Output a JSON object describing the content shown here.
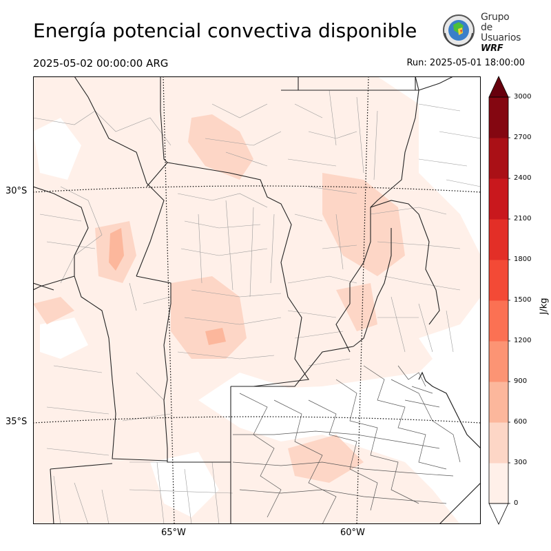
{
  "header": {
    "title": "Energía potencial convectiva disponible",
    "valid_time": "2025-05-02 00:00:00 ARG",
    "run_time": "Run: 2025-05-01 18:00:00"
  },
  "logo": {
    "line1": "Grupo de",
    "line2": "Usuarios",
    "line3": "WRF"
  },
  "map": {
    "latitude_labels": [
      "30°S",
      "35°S"
    ],
    "longitude_labels": [
      "65°W",
      "60°W"
    ]
  },
  "colorbar": {
    "unit": "J/kg",
    "ticks": [
      "0",
      "300",
      "600",
      "900",
      "1200",
      "1500",
      "1800",
      "2100",
      "2400",
      "2700",
      "3000"
    ],
    "colors": [
      "#fff0e9",
      "#fdd6c6",
      "#fcb79c",
      "#fc9474",
      "#fb7153",
      "#f34a36",
      "#e32f27",
      "#c9181d",
      "#aa1016",
      "#840711"
    ]
  }
}
